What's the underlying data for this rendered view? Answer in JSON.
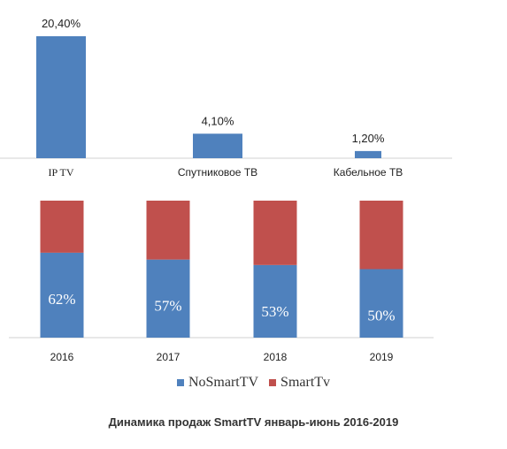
{
  "chart_data": [
    {
      "type": "bar",
      "categories": [
        "IP TV",
        "Спутниковое  ТВ",
        "Кабельное ТВ"
      ],
      "values": [
        20.4,
        4.1,
        1.2
      ],
      "value_labels": [
        "20,40%",
        "4,10%",
        "1,20%"
      ],
      "ylim": [
        0,
        22
      ],
      "grid": false,
      "color": "#4f81bd"
    },
    {
      "type": "bar",
      "stacked": true,
      "categories": [
        "2016",
        "2017",
        "2018",
        "2019"
      ],
      "series": [
        {
          "name": "NoSmartTV",
          "values": [
            62,
            57,
            53,
            50
          ],
          "labels": [
            "62%",
            "57%",
            "53%",
            "50%"
          ],
          "color": "#4f81bd"
        },
        {
          "name": "SmartTv",
          "values": [
            38,
            43,
            47,
            50
          ],
          "color": "#c0504d"
        }
      ],
      "ylim": [
        0,
        100
      ],
      "grid": false,
      "legend": "bottom"
    }
  ],
  "caption": "Динамика продаж SmartTV январь-июнь 2016-2019"
}
